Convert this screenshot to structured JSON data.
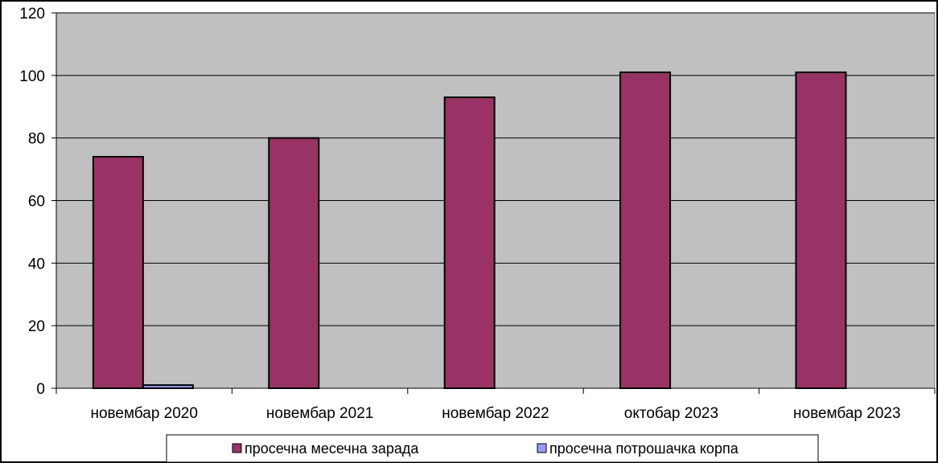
{
  "chart_data": {
    "type": "bar",
    "categories": [
      "новембар 2020",
      "новембар 2021",
      "новембар 2022",
      "октобар 2023",
      "новембар 2023"
    ],
    "series": [
      {
        "name": "просечна месечна зарада",
        "values": [
          74,
          80,
          93,
          101,
          101
        ],
        "color": "#993366"
      },
      {
        "name": "просечна потрошачка корпа",
        "values": [
          1,
          null,
          null,
          null,
          null
        ],
        "color": "#9999ff"
      }
    ],
    "ylim": [
      0,
      120
    ],
    "yticks": [
      0,
      20,
      40,
      60,
      80,
      100,
      120
    ],
    "grid": true,
    "plot_background": "#c0c0c0",
    "legend_position": "bottom"
  }
}
